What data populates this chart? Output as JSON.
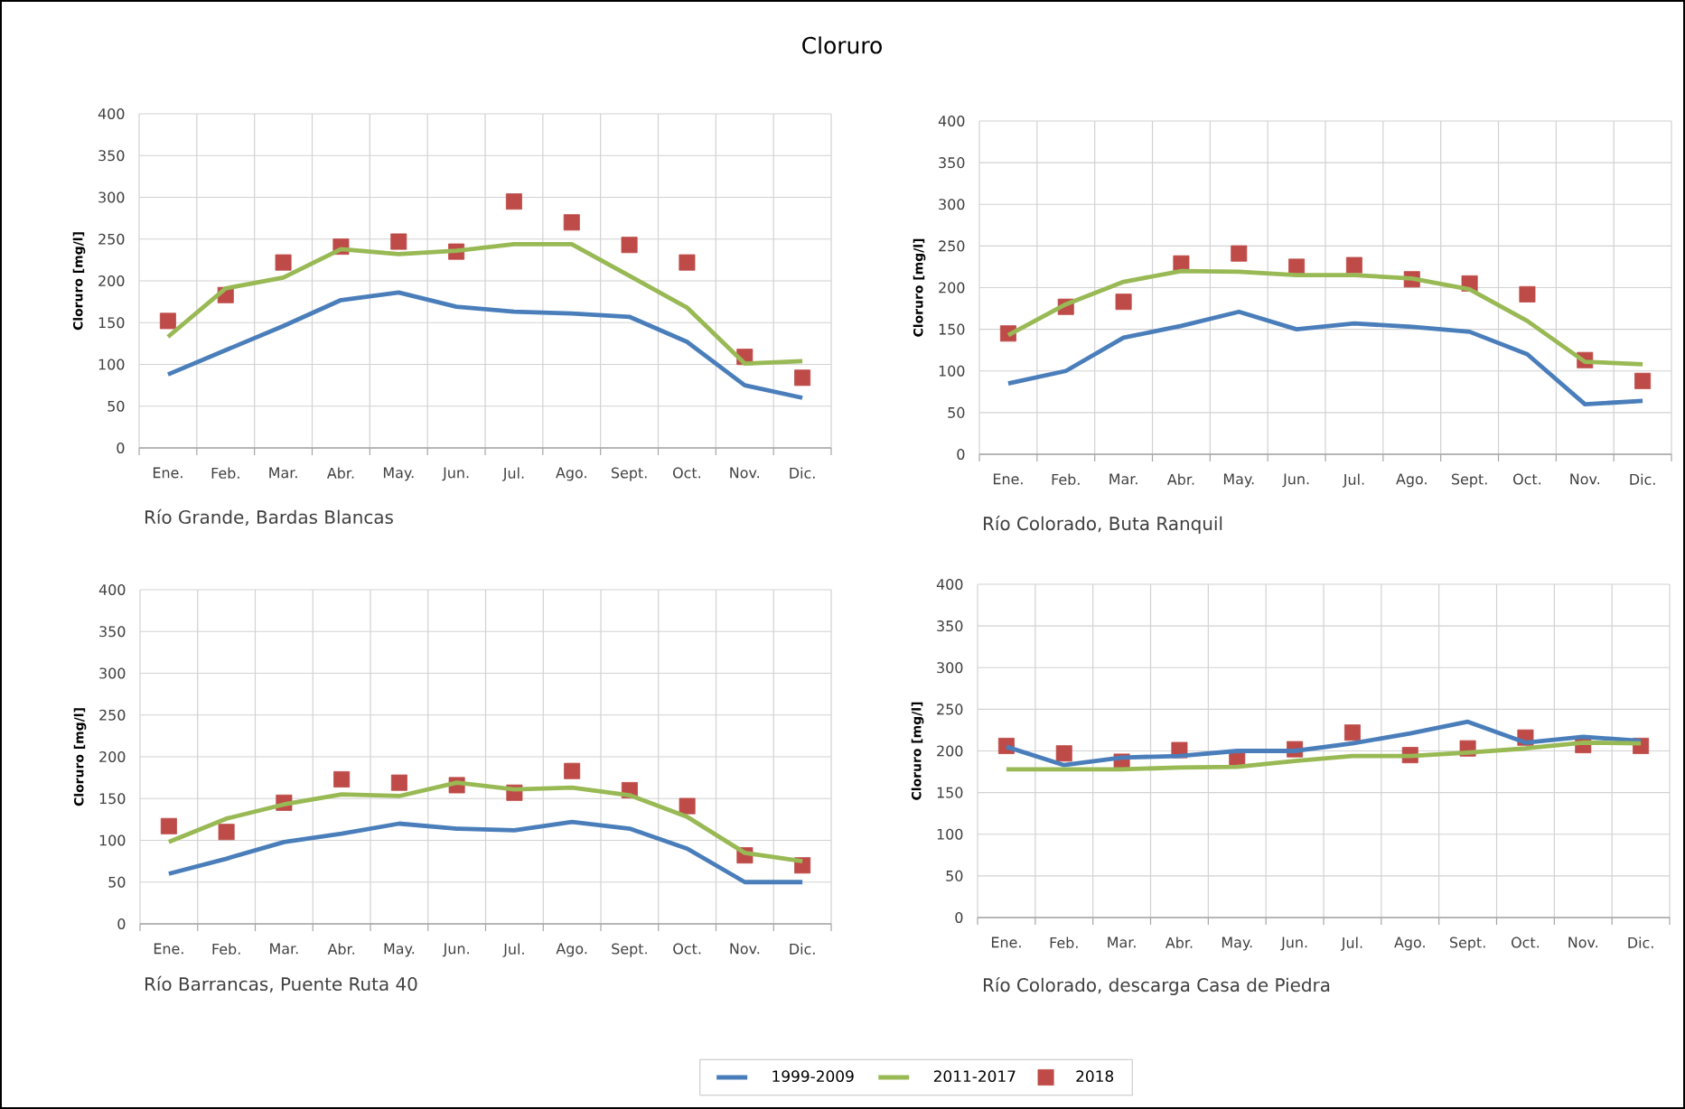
{
  "chart_data": [
    {
      "type": "line",
      "title": "Río Grande, Bardas Blancas",
      "annotations": [
        "Cloruro"
      ],
      "ylabel": "Cloruro [mg/l]",
      "categories": [
        "Ene.",
        "Feb.",
        "Mar.",
        "Abr.",
        "May.",
        "Jun.",
        "Jul.",
        "Ago.",
        "Sept.",
        "Oct.",
        "Nov.",
        "Dic."
      ],
      "ylim": [
        0,
        400
      ],
      "yticks": [
        0,
        50,
        100,
        150,
        200,
        250,
        300,
        350,
        400
      ],
      "grid": true,
      "legend": "bottom",
      "series": [
        {
          "name": "1999-2009",
          "color": "#4a7ebb",
          "values": [
            88,
            117,
            146,
            177,
            186,
            169,
            163,
            161,
            157,
            127,
            75,
            60
          ]
        },
        {
          "name": "2011-2017",
          "color": "#98b954",
          "values": [
            133,
            191,
            204,
            238,
            232,
            236,
            244,
            244,
            206,
            168,
            101,
            104
          ]
        },
        {
          "name": "2018",
          "type": "scatter",
          "marker": "square",
          "color": "#be4b48",
          "values": [
            152,
            183,
            222,
            241,
            247,
            235,
            295,
            270,
            243,
            222,
            109,
            84
          ]
        }
      ]
    },
    {
      "type": "line",
      "title": "Río Colorado, Buta Ranquil",
      "ylabel": "Cloruro [mg/l]",
      "categories": [
        "Ene.",
        "Feb.",
        "Mar.",
        "Abr.",
        "May.",
        "Jun.",
        "Jul.",
        "Ago.",
        "Sept.",
        "Oct.",
        "Nov.",
        "Dic."
      ],
      "ylim": [
        0,
        400
      ],
      "yticks": [
        0,
        50,
        100,
        150,
        200,
        250,
        300,
        350,
        400
      ],
      "grid": true,
      "series": [
        {
          "color": "#4a7ebb",
          "values": [
            85,
            100,
            140,
            154,
            171,
            150,
            157,
            153,
            147,
            120,
            60,
            64
          ]
        },
        {
          "color": "#98b954",
          "values": [
            143,
            180,
            207,
            220,
            219,
            215,
            215,
            211,
            198,
            160,
            111,
            108
          ]
        },
        {
          "type": "scatter",
          "marker": "square",
          "color": "#be4b48",
          "values": [
            145,
            177,
            183,
            229,
            241,
            225,
            227,
            210,
            205,
            192,
            113,
            88
          ]
        }
      ]
    },
    {
      "type": "line",
      "title": "Río Barrancas, Puente Ruta 40",
      "ylabel": "Cloruro [mg/l]",
      "categories": [
        "Ene.",
        "Feb.",
        "Mar.",
        "Abr.",
        "May.",
        "Jun.",
        "Jul.",
        "Ago.",
        "Sept.",
        "Oct.",
        "Nov.",
        "Dic."
      ],
      "ylim": [
        0,
        400
      ],
      "yticks": [
        0,
        50,
        100,
        150,
        200,
        250,
        300,
        350,
        400
      ],
      "grid": true,
      "series": [
        {
          "color": "#4a7ebb",
          "values": [
            60,
            78,
            98,
            108,
            120,
            114,
            112,
            122,
            114,
            90,
            50,
            50
          ]
        },
        {
          "color": "#98b954",
          "values": [
            98,
            126,
            143,
            155,
            153,
            169,
            161,
            163,
            154,
            128,
            85,
            75
          ]
        },
        {
          "type": "scatter",
          "marker": "square",
          "color": "#be4b48",
          "values": [
            117,
            110,
            145,
            173,
            169,
            166,
            157,
            183,
            160,
            141,
            82,
            70
          ]
        }
      ]
    },
    {
      "type": "line",
      "title": "Río Colorado, descarga Casa de Piedra",
      "ylabel": "Cloruro [mg/l]",
      "categories": [
        "Ene.",
        "Feb.",
        "Mar.",
        "Abr.",
        "May.",
        "Jun.",
        "Jul.",
        "Ago.",
        "Sept.",
        "Oct.",
        "Nov.",
        "Dic."
      ],
      "ylim": [
        0,
        400
      ],
      "yticks": [
        0,
        50,
        100,
        150,
        200,
        250,
        300,
        350,
        400
      ],
      "grid": true,
      "series": [
        {
          "color": "#4a7ebb",
          "values": [
            205,
            183,
            192,
            194,
            200,
            200,
            209,
            221,
            235,
            210,
            217,
            212
          ]
        },
        {
          "color": "#98b954",
          "values": [
            178,
            178,
            178,
            180,
            181,
            188,
            194,
            194,
            198,
            203,
            210,
            209
          ]
        },
        {
          "type": "scatter",
          "marker": "square",
          "color": "#be4b48",
          "values": [
            206,
            197,
            187,
            201,
            191,
            202,
            222,
            195,
            203,
            216,
            207,
            206
          ]
        }
      ]
    }
  ]
}
